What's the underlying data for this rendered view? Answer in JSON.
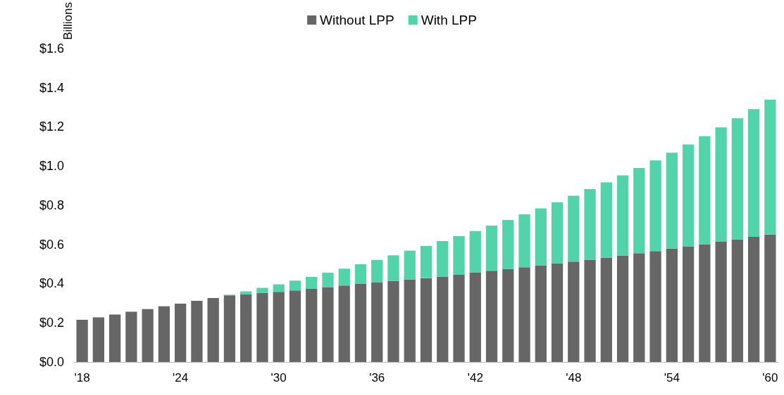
{
  "chart_data": {
    "type": "bar",
    "stacked": true,
    "ylabel": "Billions",
    "categories": [
      "'18",
      null,
      null,
      null,
      null,
      null,
      "'24",
      null,
      null,
      null,
      null,
      null,
      "'30",
      null,
      null,
      null,
      null,
      null,
      "'36",
      null,
      null,
      null,
      null,
      null,
      "'42",
      null,
      null,
      null,
      null,
      null,
      "'48",
      null,
      null,
      null,
      null,
      null,
      "'54",
      null,
      null,
      null,
      null,
      null,
      "'60"
    ],
    "series": [
      {
        "name": "Without LPP",
        "color": "#666666",
        "values": [
          0.215,
          0.228,
          0.242,
          0.256,
          0.27,
          0.284,
          0.298,
          0.312,
          0.326,
          0.34,
          0.345,
          0.352,
          0.358,
          0.365,
          0.373,
          0.382,
          0.39,
          0.398,
          0.405,
          0.413,
          0.42,
          0.428,
          0.436,
          0.445,
          0.455,
          0.465,
          0.474,
          0.483,
          0.493,
          0.503,
          0.512,
          0.522,
          0.532,
          0.543,
          0.555,
          0.566,
          0.578,
          0.59,
          0.601,
          0.613,
          0.625,
          0.638,
          0.65
        ]
      },
      {
        "name": "With LPP",
        "color": "#52d3aa",
        "values": [
          null,
          null,
          null,
          null,
          null,
          null,
          null,
          null,
          null,
          0.003,
          0.015,
          0.026,
          0.038,
          0.05,
          0.061,
          0.073,
          0.086,
          0.1,
          0.116,
          0.131,
          0.148,
          0.164,
          0.181,
          0.197,
          0.213,
          0.231,
          0.25,
          0.27,
          0.29,
          0.312,
          0.336,
          0.36,
          0.384,
          0.409,
          0.435,
          0.462,
          0.49,
          0.52,
          0.551,
          0.584,
          0.618,
          0.652,
          0.688
        ]
      }
    ],
    "ylim": [
      0,
      1.6
    ],
    "yticks": [
      {
        "value": 0,
        "label": "$0.0"
      },
      {
        "value": 0.2,
        "label": "$0.2"
      },
      {
        "value": 0.4,
        "label": "$0.4"
      },
      {
        "value": 0.6,
        "label": "$0.6"
      },
      {
        "value": 0.8,
        "label": "$0.8"
      },
      {
        "value": 1.0,
        "label": "$1.0"
      },
      {
        "value": 1.2,
        "label": "$1.2"
      },
      {
        "value": 1.4,
        "label": "$1.4"
      },
      {
        "value": 1.6,
        "label": "$1.6"
      }
    ],
    "grid": false,
    "legend": "top"
  }
}
